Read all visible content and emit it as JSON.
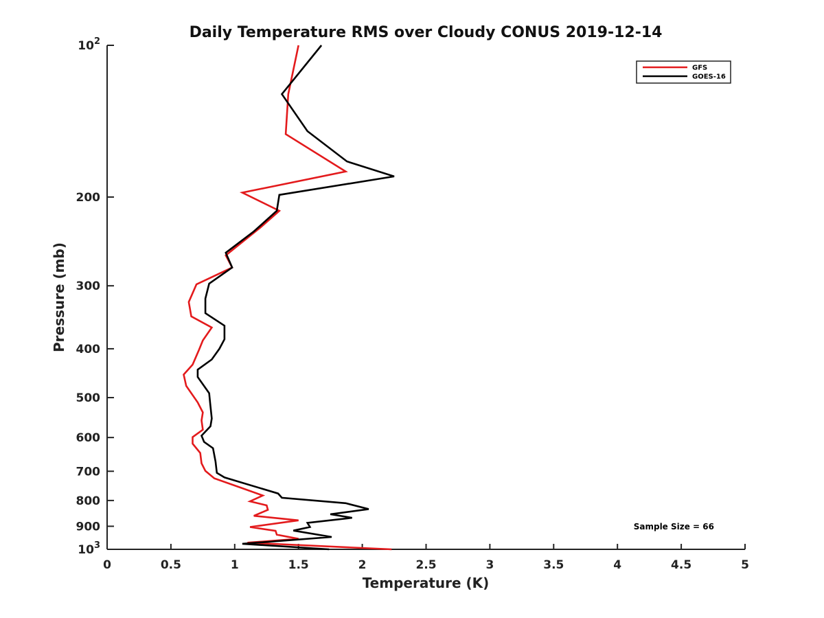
{
  "chart_data": {
    "type": "line",
    "title": "Daily Temperature RMS over Cloudy CONUS 2019-12-14",
    "xlabel": "Temperature (K)",
    "ylabel": "Pressure (mb)",
    "xlim": [
      0,
      5
    ],
    "ylim": [
      100,
      1000
    ],
    "y_scale": "log",
    "y_reversed": true,
    "grid": false,
    "legend_position": "top-right",
    "annotation": "Sample Size = 66",
    "x_ticks": [
      0,
      0.5,
      1,
      1.5,
      2,
      2.5,
      3,
      3.5,
      4,
      4.5,
      5
    ],
    "x_tick_labels": [
      "0",
      "0.5",
      "1",
      "1.5",
      "2",
      "2.5",
      "3",
      "3.5",
      "4",
      "4.5",
      "5"
    ],
    "y_ticks": [
      100,
      200,
      300,
      400,
      500,
      600,
      700,
      800,
      900,
      1000
    ],
    "y_tick_labels": [
      {
        "base": "10",
        "exp": "2"
      },
      {
        "base": "200",
        "exp": ""
      },
      {
        "base": "300",
        "exp": ""
      },
      {
        "base": "400",
        "exp": ""
      },
      {
        "base": "500",
        "exp": ""
      },
      {
        "base": "600",
        "exp": ""
      },
      {
        "base": "700",
        "exp": ""
      },
      {
        "base": "800",
        "exp": ""
      },
      {
        "base": "900",
        "exp": ""
      },
      {
        "base": "10",
        "exp": "3"
      }
    ],
    "series": [
      {
        "name": "GFS",
        "color": "#e31a1c",
        "points": [
          [
            1.5,
            100
          ],
          [
            1.42,
            125
          ],
          [
            1.4,
            150
          ],
          [
            1.87,
            178
          ],
          [
            1.06,
            196
          ],
          [
            1.35,
            213
          ],
          [
            1.2,
            230
          ],
          [
            0.93,
            261
          ],
          [
            0.98,
            276
          ],
          [
            0.7,
            298
          ],
          [
            0.64,
            323
          ],
          [
            0.66,
            345
          ],
          [
            0.82,
            363
          ],
          [
            0.75,
            385
          ],
          [
            0.72,
            402
          ],
          [
            0.67,
            430
          ],
          [
            0.6,
            450
          ],
          [
            0.62,
            474
          ],
          [
            0.71,
            511
          ],
          [
            0.75,
            535
          ],
          [
            0.74,
            555
          ],
          [
            0.75,
            579
          ],
          [
            0.67,
            599
          ],
          [
            0.67,
            617
          ],
          [
            0.73,
            644
          ],
          [
            0.74,
            675
          ],
          [
            0.77,
            699
          ],
          [
            0.84,
            723
          ],
          [
            1.05,
            755
          ],
          [
            1.22,
            782
          ],
          [
            1.12,
            803
          ],
          [
            1.25,
            818
          ],
          [
            1.26,
            835
          ],
          [
            1.15,
            858
          ],
          [
            1.5,
            876
          ],
          [
            1.12,
            903
          ],
          [
            1.32,
            919
          ],
          [
            1.33,
            935
          ],
          [
            1.5,
            953
          ],
          [
            1.1,
            970
          ],
          [
            2.23,
            1000
          ]
        ]
      },
      {
        "name": "GOES-16",
        "color": "#000000",
        "points": [
          [
            1.68,
            100
          ],
          [
            1.37,
            125
          ],
          [
            1.57,
            148
          ],
          [
            1.88,
            170
          ],
          [
            2.25,
            182
          ],
          [
            1.35,
            198
          ],
          [
            1.33,
            213
          ],
          [
            1.15,
            234
          ],
          [
            0.93,
            258
          ],
          [
            0.98,
            276
          ],
          [
            0.8,
            297
          ],
          [
            0.77,
            318
          ],
          [
            0.77,
            340
          ],
          [
            0.92,
            360
          ],
          [
            0.92,
            383
          ],
          [
            0.88,
            400
          ],
          [
            0.82,
            420
          ],
          [
            0.71,
            440
          ],
          [
            0.71,
            455
          ],
          [
            0.8,
            490
          ],
          [
            0.81,
            520
          ],
          [
            0.82,
            550
          ],
          [
            0.81,
            570
          ],
          [
            0.74,
            595
          ],
          [
            0.76,
            612
          ],
          [
            0.83,
            630
          ],
          [
            0.85,
            670
          ],
          [
            0.86,
            705
          ],
          [
            0.92,
            720
          ],
          [
            1.34,
            775
          ],
          [
            1.37,
            790
          ],
          [
            1.87,
            810
          ],
          [
            2.05,
            832
          ],
          [
            1.75,
            852
          ],
          [
            1.92,
            866
          ],
          [
            1.57,
            886
          ],
          [
            1.59,
            903
          ],
          [
            1.46,
            918
          ],
          [
            1.76,
            945
          ],
          [
            1.06,
            975
          ],
          [
            1.74,
            1000
          ]
        ]
      }
    ]
  }
}
